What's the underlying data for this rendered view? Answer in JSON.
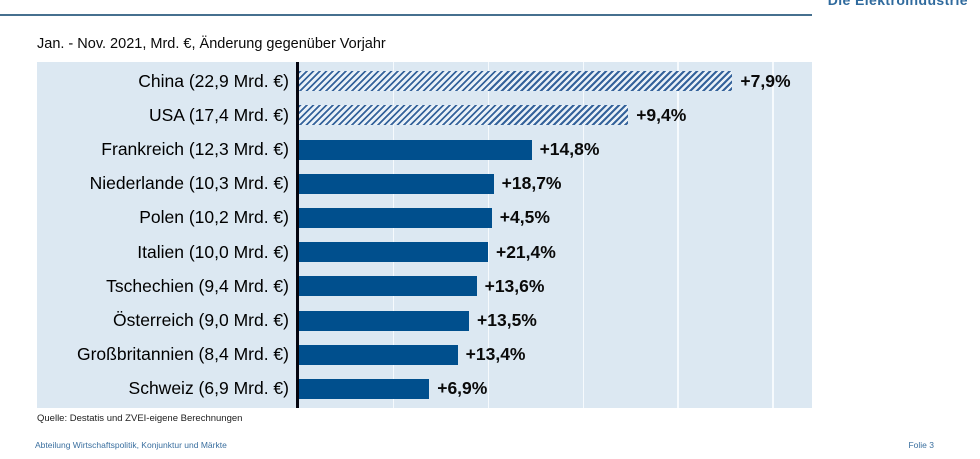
{
  "page": {
    "brand": "Die Elektroindustrie",
    "subtitle": "Jan. - Nov. 2021, Mrd. €, Änderung gegenüber Vorjahr",
    "source": "Quelle: Destatis und ZVEI-eigene Berechnungen",
    "footer_left": "Abteilung Wirtschaftspolitik, Konjunktur und Märkte",
    "footer_right": "Folie 3"
  },
  "colors": {
    "bar_solid": "#004f8d",
    "hatch_stripe": "#35639b",
    "hatch_background": "#e9f1f8",
    "panel_background": "#dce8f2",
    "separator_line": "#46708f",
    "brand_blue": "#2f6a9d",
    "gridline": "#f6fafd"
  },
  "chart_data": {
    "type": "bar",
    "orientation": "horizontal",
    "subtitle": "Jan. - Nov. 2021, Mrd. €, Änderung gegenüber Vorjahr",
    "unit": "Mrd. €",
    "xlim": [
      0,
      27.1
    ],
    "gridlines_mrd": [
      5,
      10,
      15,
      20,
      25
    ],
    "grid": true,
    "legend": false,
    "categories": [
      "China",
      "USA",
      "Frankreich",
      "Niederlande",
      "Polen",
      "Italien",
      "Tschechien",
      "Österreich",
      "Großbritannien",
      "Schweiz"
    ],
    "rows": [
      {
        "country": "China",
        "label": "China (22,9 Mrd. €)",
        "value_mrd": 22.9,
        "change": "+7,9%",
        "change_pct": 7.9,
        "hatched": true
      },
      {
        "country": "USA",
        "label": "USA (17,4 Mrd. €)",
        "value_mrd": 17.4,
        "change": "+9,4%",
        "change_pct": 9.4,
        "hatched": true
      },
      {
        "country": "Frankreich",
        "label": "Frankreich (12,3 Mrd. €)",
        "value_mrd": 12.3,
        "change": "+14,8%",
        "change_pct": 14.8,
        "hatched": false
      },
      {
        "country": "Niederlande",
        "label": "Niederlande (10,3 Mrd. €)",
        "value_mrd": 10.3,
        "change": "+18,7%",
        "change_pct": 18.7,
        "hatched": false
      },
      {
        "country": "Polen",
        "label": "Polen (10,2 Mrd. €)",
        "value_mrd": 10.2,
        "change": "+4,5%",
        "change_pct": 4.5,
        "hatched": false
      },
      {
        "country": "Italien",
        "label": "Italien (10,0 Mrd. €)",
        "value_mrd": 10.0,
        "change": "+21,4%",
        "change_pct": 21.4,
        "hatched": false
      },
      {
        "country": "Tschechien",
        "label": "Tschechien (9,4 Mrd. €)",
        "value_mrd": 9.4,
        "change": "+13,6%",
        "change_pct": 13.6,
        "hatched": false
      },
      {
        "country": "Österreich",
        "label": "Österreich (9,0 Mrd. €)",
        "value_mrd": 9.0,
        "change": "+13,5%",
        "change_pct": 13.5,
        "hatched": false
      },
      {
        "country": "Großbritannien",
        "label": "Großbritannien (8,4 Mrd. €)",
        "value_mrd": 8.4,
        "change": "+13,4%",
        "change_pct": 13.4,
        "hatched": false
      },
      {
        "country": "Schweiz",
        "label": "Schweiz (6,9 Mrd. €)",
        "value_mrd": 6.9,
        "change": "+6,9%",
        "change_pct": 6.9,
        "hatched": false
      }
    ]
  }
}
